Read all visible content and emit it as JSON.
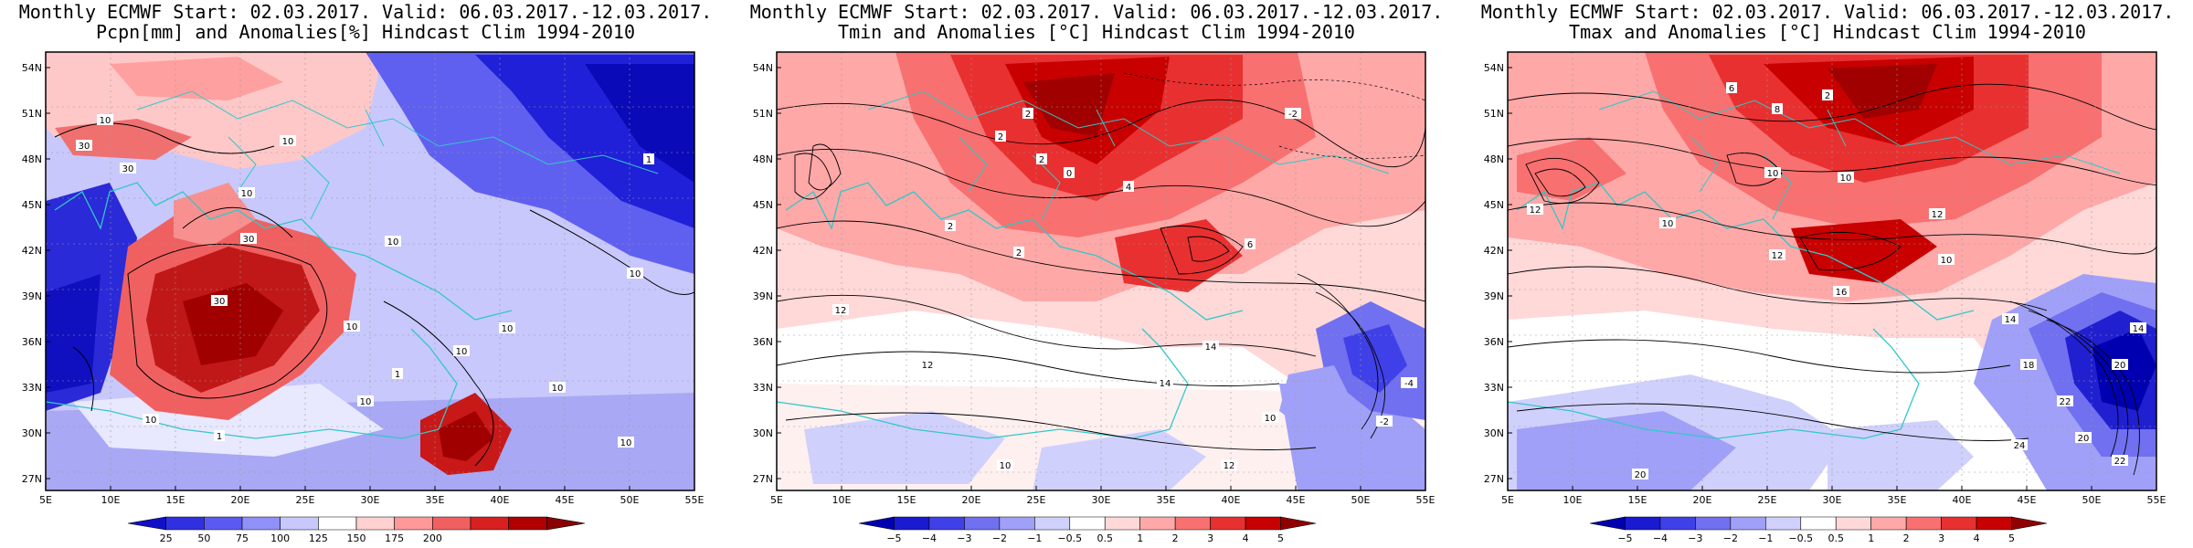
{
  "panels": [
    {
      "id": "pcpn",
      "title_line1": "Monthly ECMWF Start: 02.03.2017. Valid: 06.03.2017.-12.03.2017.",
      "title_line2": "Pcpn[mm] and Anomalies[%] Hindcast Clim 1994-2010",
      "colorbar": {
        "labels": [
          "25",
          "50",
          "75",
          "100",
          "125",
          "150",
          "175",
          "200"
        ],
        "colors": [
          "#1010c8",
          "#3030e0",
          "#5a5af0",
          "#9090f8",
          "#c8c8fc",
          "#ffffff",
          "#ffd0d0",
          "#ff9898",
          "#f06060",
          "#d82020",
          "#b00000",
          "#880000"
        ]
      }
    },
    {
      "id": "tmin",
      "title_line1": "Monthly ECMWF Start: 02.03.2017. Valid: 06.03.2017.-12.03.2017.",
      "title_line2": "Tmin and Anomalies [°C] Hindcast Clim 1994-2010",
      "colorbar": {
        "labels": [
          "−5",
          "−4",
          "−3",
          "−2",
          "−1",
          "−0.5",
          "0.5",
          "1",
          "2",
          "3",
          "4",
          "5"
        ],
        "colors": [
          "#0000b0",
          "#1a1ad0",
          "#4040e8",
          "#7070f0",
          "#a0a0f8",
          "#d0d0fc",
          "#ffffff",
          "#ffd8d8",
          "#ffa8a8",
          "#f87070",
          "#e83030",
          "#c80000",
          "#900000"
        ]
      }
    },
    {
      "id": "tmax",
      "title_line1": "Monthly ECMWF Start: 02.03.2017. Valid: 06.03.2017.-12.03.2017.",
      "title_line2": "Tmax and Anomalies [°C] Hindcast Clim 1994-2010",
      "colorbar": {
        "labels": [
          "−5",
          "−4",
          "−3",
          "−2",
          "−1",
          "−0.5",
          "0.5",
          "1",
          "2",
          "3",
          "4",
          "5"
        ],
        "colors": [
          "#0000b0",
          "#1a1ad0",
          "#4040e8",
          "#7070f0",
          "#a0a0f8",
          "#d0d0fc",
          "#ffffff",
          "#ffd8d8",
          "#ffa8a8",
          "#f87070",
          "#e83030",
          "#c80000",
          "#900000"
        ]
      }
    }
  ],
  "map_axes": {
    "lat_labels": [
      "54N",
      "51N",
      "48N",
      "45N",
      "42N",
      "39N",
      "36N",
      "33N",
      "30N",
      "27N"
    ],
    "lon_labels": [
      "5E",
      "10E",
      "15E",
      "20E",
      "25E",
      "30E",
      "35E",
      "40E",
      "45E",
      "50E",
      "55E"
    ]
  },
  "pcpn_contour_labels": [
    "30",
    "30",
    "10",
    "10",
    "10",
    "30",
    "10",
    "30",
    "10",
    "10",
    "10",
    "10",
    "10",
    "1",
    "1",
    "10",
    "10",
    "1",
    "10"
  ],
  "tmin_contour_labels": [
    "2",
    "2",
    "2",
    "-2",
    "0",
    "2",
    "4",
    "2",
    "6",
    "12",
    "14",
    "12",
    "14",
    "10",
    "10",
    "12",
    "-4",
    "-2"
  ],
  "tmax_contour_labels": [
    "6",
    "8",
    "2",
    "10",
    "10",
    "10",
    "12",
    "16",
    "12",
    "10",
    "14",
    "18",
    "20",
    "22",
    "20",
    "24",
    "22",
    "20",
    "14",
    "12"
  ]
}
